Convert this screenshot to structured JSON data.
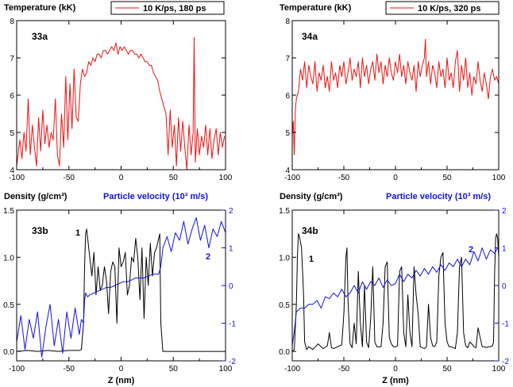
{
  "colors": {
    "red": "#ee1111",
    "blue": "#1111dd",
    "black": "#000000"
  },
  "chart_data": [
    {
      "id": "33a",
      "type": "line",
      "panel_label": "33a",
      "ylabel": "Temperature (kK)",
      "legend": "10 K/ps, 180 ps",
      "xlim": [
        -100,
        100
      ],
      "ylim": [
        4,
        8
      ],
      "xticks": [
        "-100",
        "-50",
        "0",
        "50",
        "100"
      ],
      "yticks": [
        "4",
        "5",
        "6",
        "7",
        "8"
      ],
      "series": [
        {
          "color": "red",
          "x": [
            -100,
            -97,
            -95,
            -93,
            -91,
            -89,
            -87,
            -85,
            -83,
            -81,
            -79,
            -77,
            -75,
            -73,
            -71,
            -69,
            -67,
            -65,
            -63,
            -61,
            -59,
            -57,
            -55,
            -53,
            -51,
            -49,
            -47,
            -45,
            -43,
            -41,
            -39,
            -37,
            -35,
            -33,
            -31,
            -29,
            -27,
            -25,
            -23,
            -21,
            -19,
            -17,
            -15,
            -13,
            -11,
            -9,
            -7,
            -5,
            -3,
            -1,
            1,
            3,
            5,
            7,
            9,
            11,
            13,
            15,
            17,
            19,
            21,
            23,
            25,
            27,
            29,
            31,
            33,
            35,
            37,
            39,
            41,
            43,
            45,
            47,
            49,
            51,
            53,
            55,
            57,
            59,
            61,
            63,
            65,
            67,
            69,
            70,
            71,
            73,
            75,
            77,
            79,
            81,
            83,
            85,
            87,
            89,
            91,
            93,
            95,
            97,
            99
          ],
          "y": [
            4.1,
            4.8,
            4.3,
            5.0,
            4.5,
            5.9,
            4.4,
            5.2,
            4.6,
            4.1,
            5.4,
            4.5,
            5.6,
            4.7,
            5.2,
            4.6,
            5.0,
            4.8,
            5.9,
            4.4,
            4.1,
            5.5,
            4.6,
            6.5,
            4.8,
            6.3,
            5.1,
            6.7,
            5.4,
            5.3,
            6.3,
            6.7,
            6.5,
            6.6,
            6.9,
            6.8,
            7.0,
            6.9,
            7.1,
            7.1,
            7.0,
            7.2,
            7.2,
            7.1,
            7.2,
            7.3,
            7.2,
            7.4,
            7.1,
            7.3,
            7.2,
            7.3,
            7.2,
            7.1,
            7.2,
            7.2,
            7.1,
            7.1,
            7.0,
            7.1,
            7.0,
            6.9,
            6.9,
            6.8,
            6.8,
            6.6,
            6.5,
            6.4,
            6.1,
            5.9,
            5.7,
            5.5,
            4.4,
            5.6,
            4.6,
            5.2,
            4.1,
            5.4,
            4.5,
            5.3,
            4.6,
            4.0,
            5.2,
            4.4,
            5.0,
            7.55,
            4.2,
            5.1,
            4.4,
            4.9,
            4.6,
            5.2,
            4.4,
            5.1,
            4.3,
            4.8,
            5.1,
            4.4,
            5.0,
            4.6,
            4.9
          ]
        }
      ]
    },
    {
      "id": "34a",
      "type": "line",
      "panel_label": "34a",
      "ylabel": "Temperature (kK)",
      "legend": "10 K/ps, 320 ps",
      "xlim": [
        -100,
        100
      ],
      "ylim": [
        4,
        8
      ],
      "xticks": [
        "-100",
        "-50",
        "0",
        "50",
        "100"
      ],
      "yticks": [
        "4",
        "5",
        "6",
        "7",
        "8"
      ],
      "series": [
        {
          "color": "red",
          "x": [
            -100,
            -99,
            -98,
            -97,
            -96,
            -94,
            -92,
            -90,
            -88,
            -86,
            -84,
            -82,
            -80,
            -78,
            -76,
            -74,
            -72,
            -70,
            -68,
            -66,
            -64,
            -62,
            -60,
            -58,
            -56,
            -54,
            -52,
            -50,
            -48,
            -46,
            -44,
            -42,
            -40,
            -38,
            -36,
            -34,
            -32,
            -30,
            -28,
            -26,
            -24,
            -22,
            -20,
            -18,
            -16,
            -14,
            -12,
            -10,
            -8,
            -6,
            -4,
            -2,
            0,
            2,
            4,
            6,
            8,
            10,
            12,
            14,
            16,
            18,
            20,
            22,
            24,
            26,
            28,
            29,
            30,
            32,
            34,
            36,
            38,
            40,
            42,
            44,
            46,
            48,
            50,
            52,
            54,
            56,
            58,
            60,
            62,
            64,
            66,
            68,
            70,
            72,
            74,
            76,
            78,
            80,
            82,
            84,
            86,
            88,
            90,
            92,
            94,
            96,
            98,
            100
          ],
          "y": [
            4.9,
            5.3,
            4.4,
            5.6,
            5.9,
            6.1,
            6.7,
            6.4,
            6.9,
            6.2,
            6.8,
            6.5,
            6.3,
            6.9,
            6.1,
            6.6,
            6.4,
            6.8,
            6.2,
            6.5,
            6.1,
            6.9,
            6.4,
            6.6,
            6.2,
            6.8,
            6.5,
            6.9,
            6.3,
            6.6,
            7.0,
            6.4,
            6.7,
            6.5,
            6.9,
            6.2,
            7.0,
            6.5,
            6.8,
            6.3,
            6.7,
            6.9,
            6.4,
            7.1,
            6.6,
            6.9,
            6.3,
            6.8,
            6.5,
            7.0,
            6.6,
            6.4,
            6.9,
            6.6,
            7.1,
            6.5,
            6.8,
            6.3,
            6.9,
            6.6,
            6.4,
            6.8,
            6.1,
            6.9,
            6.5,
            6.8,
            7.0,
            7.5,
            6.5,
            6.9,
            6.3,
            6.8,
            6.6,
            6.2,
            6.9,
            6.5,
            6.7,
            6.2,
            7.0,
            6.4,
            6.6,
            6.2,
            6.9,
            7.2,
            6.1,
            6.8,
            6.4,
            7.0,
            6.2,
            6.6,
            6.0,
            6.5,
            6.3,
            6.9,
            6.4,
            6.1,
            6.6,
            6.3,
            5.9,
            6.5,
            6.7,
            6.4,
            6.5,
            6.3
          ]
        }
      ]
    },
    {
      "id": "33b",
      "type": "line",
      "panel_label": "33b",
      "ylabel": "Density (g/cm³)",
      "ylabel_right": "Particle velocity (10³ m/s)",
      "xlabel": "Z (nm)",
      "xlim": [
        -100,
        100
      ],
      "ylim": [
        -0.1,
        1.5
      ],
      "ylim_right": [
        -2,
        2
      ],
      "xticks": [
        "-100",
        "-50",
        "0",
        "50",
        "100"
      ],
      "yticks": [
        "0.0",
        "0.5",
        "1.0",
        "1.5"
      ],
      "yticks_right": [
        "-2",
        "-1",
        "0",
        "1",
        "2"
      ],
      "annotations": [
        {
          "text": "1",
          "color": "black"
        },
        {
          "text": "2",
          "color": "blue"
        }
      ],
      "series": [
        {
          "name": "1",
          "axis": "left",
          "color": "black",
          "x": [
            -100,
            -90,
            -80,
            -70,
            -60,
            -50,
            -40,
            -38,
            -36,
            -35,
            -34,
            -33,
            -32,
            -31,
            -30,
            -28,
            -26,
            -24,
            -22,
            -20,
            -18,
            -16,
            -14,
            -12,
            -10,
            -8,
            -6,
            -4,
            -2,
            0,
            2,
            4,
            6,
            8,
            10,
            12,
            14,
            16,
            18,
            20,
            22,
            24,
            26,
            28,
            30,
            32,
            34,
            36,
            37,
            38,
            40,
            42,
            45,
            50,
            60,
            70,
            80,
            90,
            100
          ],
          "y": [
            0.0,
            0.01,
            0.0,
            0.01,
            0.0,
            0.01,
            0.01,
            0.02,
            0.3,
            0.9,
            1.25,
            1.3,
            1.2,
            1.1,
            1.0,
            0.8,
            1.05,
            0.6,
            0.9,
            0.65,
            0.7,
            0.9,
            0.75,
            0.4,
            0.85,
            0.95,
            0.9,
            0.3,
            1.1,
            0.9,
            0.95,
            1.05,
            0.6,
            0.7,
            1.0,
            0.95,
            1.2,
            1.0,
            0.55,
            1.1,
            0.35,
            1.0,
            0.7,
            1.15,
            0.8,
            1.05,
            1.1,
            1.2,
            1.25,
            0.3,
            0.0,
            0.0,
            0.0,
            0.0,
            0.0,
            0.0,
            0.0,
            0.0,
            0.0
          ]
        },
        {
          "name": "2",
          "axis": "right",
          "color": "blue",
          "x": [
            -100,
            -96,
            -92,
            -88,
            -84,
            -80,
            -76,
            -72,
            -68,
            -64,
            -60,
            -56,
            -52,
            -48,
            -44,
            -40,
            -38,
            -36,
            -35,
            -34,
            -32,
            -30,
            -26,
            -22,
            -18,
            -14,
            -10,
            -6,
            -2,
            2,
            6,
            10,
            14,
            18,
            22,
            26,
            30,
            34,
            36,
            38,
            40,
            44,
            48,
            52,
            56,
            60,
            64,
            68,
            72,
            76,
            80,
            84,
            88,
            92,
            96,
            100
          ],
          "y": [
            -1.5,
            -0.8,
            -1.7,
            -0.9,
            -1.4,
            -0.7,
            -1.9,
            -1.1,
            -0.5,
            -1.6,
            -0.9,
            -1.8,
            -0.7,
            -1.4,
            -0.6,
            -1.3,
            -0.9,
            -1.0,
            -0.4,
            -0.2,
            -0.3,
            -0.25,
            -0.2,
            -0.15,
            -0.1,
            -0.05,
            -0.05,
            0.0,
            0.05,
            0.1,
            0.1,
            0.15,
            0.2,
            0.2,
            0.2,
            0.25,
            0.3,
            0.3,
            0.3,
            0.5,
            1.0,
            1.3,
            0.9,
            1.4,
            1.2,
            1.7,
            1.1,
            1.5,
            1.8,
            1.2,
            1.6,
            1.0,
            1.5,
            1.3,
            1.7,
            1.4
          ]
        }
      ]
    },
    {
      "id": "34b",
      "type": "line",
      "panel_label": "34b",
      "ylabel": "Density (g/cm³)",
      "ylabel_right": "Particle velocity (10³ m/s)",
      "xlabel": "Z (nm)",
      "xlim": [
        -100,
        100
      ],
      "ylim": [
        -0.1,
        1.5
      ],
      "ylim_right": [
        -2,
        2
      ],
      "xticks": [
        "-100",
        "-50",
        "0",
        "50",
        "100"
      ],
      "yticks": [
        "0.0",
        "0.5",
        "1.0",
        "1.5"
      ],
      "yticks_right": [
        "-2",
        "-1",
        "0",
        "1",
        "2"
      ],
      "annotations": [
        {
          "text": "1",
          "color": "black"
        },
        {
          "text": "2",
          "color": "blue"
        }
      ],
      "series": [
        {
          "name": "1",
          "axis": "left",
          "color": "black",
          "x": [
            -100,
            -98,
            -96,
            -95,
            -94,
            -93,
            -91,
            -89,
            -88,
            -86,
            -84,
            -80,
            -75,
            -70,
            -66,
            -64,
            -62,
            -60,
            -56,
            -52,
            -50,
            -48,
            -47,
            -46,
            -44,
            -42,
            -40,
            -38,
            -36,
            -34,
            -32,
            -30,
            -28,
            -26,
            -24,
            -22,
            -20,
            -18,
            -16,
            -14,
            -12,
            -10,
            -8,
            -6,
            -4,
            -2,
            0,
            2,
            4,
            6,
            8,
            10,
            12,
            14,
            16,
            18,
            20,
            22,
            24,
            26,
            28,
            30,
            32,
            34,
            36,
            38,
            40,
            42,
            44,
            46,
            48,
            50,
            52,
            54,
            56,
            58,
            60,
            62,
            64,
            66,
            68,
            70,
            72,
            74,
            76,
            78,
            80,
            82,
            84,
            86,
            88,
            90,
            92,
            94,
            95,
            96,
            97,
            98,
            99,
            100
          ],
          "y": [
            0.0,
            0.02,
            0.5,
            1.0,
            1.25,
            1.22,
            1.1,
            0.6,
            0.1,
            0.02,
            0.05,
            0.02,
            0.08,
            0.03,
            0.06,
            0.2,
            0.04,
            0.03,
            0.05,
            0.07,
            0.4,
            1.0,
            1.1,
            0.55,
            0.08,
            0.04,
            0.3,
            0.08,
            0.85,
            0.3,
            0.05,
            0.7,
            0.1,
            0.04,
            0.35,
            0.9,
            0.1,
            0.05,
            0.05,
            0.05,
            0.3,
            0.9,
            0.95,
            0.15,
            0.08,
            0.05,
            0.05,
            0.06,
            0.85,
            0.9,
            0.2,
            0.05,
            0.6,
            0.2,
            0.05,
            0.9,
            0.6,
            0.4,
            0.05,
            0.04,
            0.03,
            0.05,
            0.5,
            0.15,
            0.06,
            0.05,
            0.1,
            0.8,
            1.0,
            1.05,
            0.3,
            0.1,
            0.05,
            0.05,
            0.04,
            0.03,
            0.2,
            0.9,
            1.0,
            0.2,
            0.06,
            0.04,
            0.1,
            0.08,
            0.05,
            0.04,
            0.25,
            0.15,
            0.05,
            0.05,
            0.04,
            0.05,
            0.05,
            0.06,
            0.1,
            0.8,
            1.2,
            1.25,
            1.2,
            1.0
          ]
        },
        {
          "name": "2",
          "axis": "right",
          "color": "blue",
          "x": [
            -100,
            -98,
            -96,
            -92,
            -88,
            -84,
            -80,
            -76,
            -72,
            -68,
            -64,
            -60,
            -56,
            -52,
            -48,
            -44,
            -40,
            -36,
            -32,
            -28,
            -24,
            -20,
            -16,
            -12,
            -8,
            -4,
            0,
            4,
            8,
            12,
            16,
            20,
            24,
            28,
            32,
            36,
            40,
            44,
            48,
            52,
            56,
            60,
            64,
            68,
            72,
            76,
            80,
            84,
            88,
            92,
            96,
            100
          ],
          "y": [
            -1.6,
            -1.2,
            -0.7,
            -0.6,
            -0.6,
            -0.5,
            -0.5,
            -0.4,
            -0.6,
            -0.3,
            -0.35,
            -0.2,
            -0.3,
            -0.1,
            -0.3,
            -0.2,
            0.0,
            -0.2,
            0.1,
            -0.1,
            0.1,
            0.0,
            0.2,
            -0.05,
            0.15,
            0.0,
            0.05,
            0.3,
            0.1,
            0.3,
            0.2,
            0.4,
            0.25,
            0.45,
            0.3,
            0.5,
            0.35,
            0.55,
            0.4,
            0.6,
            0.5,
            0.7,
            0.5,
            0.7,
            0.55,
            0.9,
            0.65,
            1.0,
            0.7,
            0.95,
            0.85,
            1.05
          ]
        }
      ]
    }
  ]
}
